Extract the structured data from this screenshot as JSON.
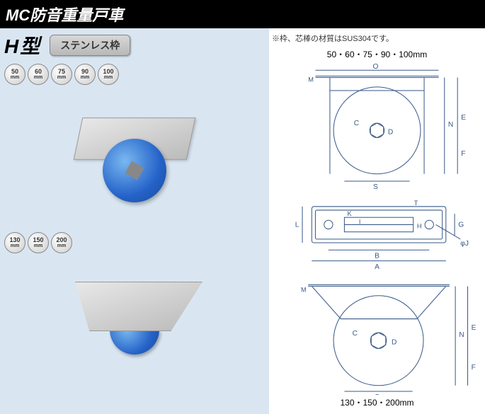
{
  "title": "MC防音重量戸車",
  "subtitle": "H型",
  "badge": "ステンレス枠",
  "note": "※枠、芯棒の材質はSUS304です。",
  "sizes_top": [
    {
      "val": "50",
      "unit": "mm"
    },
    {
      "val": "60",
      "unit": "mm"
    },
    {
      "val": "75",
      "unit": "mm"
    },
    {
      "val": "90",
      "unit": "mm"
    },
    {
      "val": "100",
      "unit": "mm"
    }
  ],
  "sizes_bottom": [
    {
      "val": "130",
      "unit": "mm"
    },
    {
      "val": "150",
      "unit": "mm"
    },
    {
      "val": "200",
      "unit": "mm"
    }
  ],
  "dim_top": "50・60・75・90・100mm",
  "dim_bottom": "130・150・200mm",
  "dim_letters": {
    "O": "O",
    "M": "M",
    "C": "C",
    "D": "D",
    "N": "N",
    "E": "E",
    "F": "F",
    "S": "S",
    "T": "T",
    "K": "K",
    "I": "I",
    "H": "H",
    "L": "L",
    "G": "G",
    "B": "B",
    "A": "A",
    "J": "φJ"
  },
  "colors": {
    "bg": "#d9e6f2",
    "line": "#3a5a8a",
    "wheel": "#2563c9"
  }
}
